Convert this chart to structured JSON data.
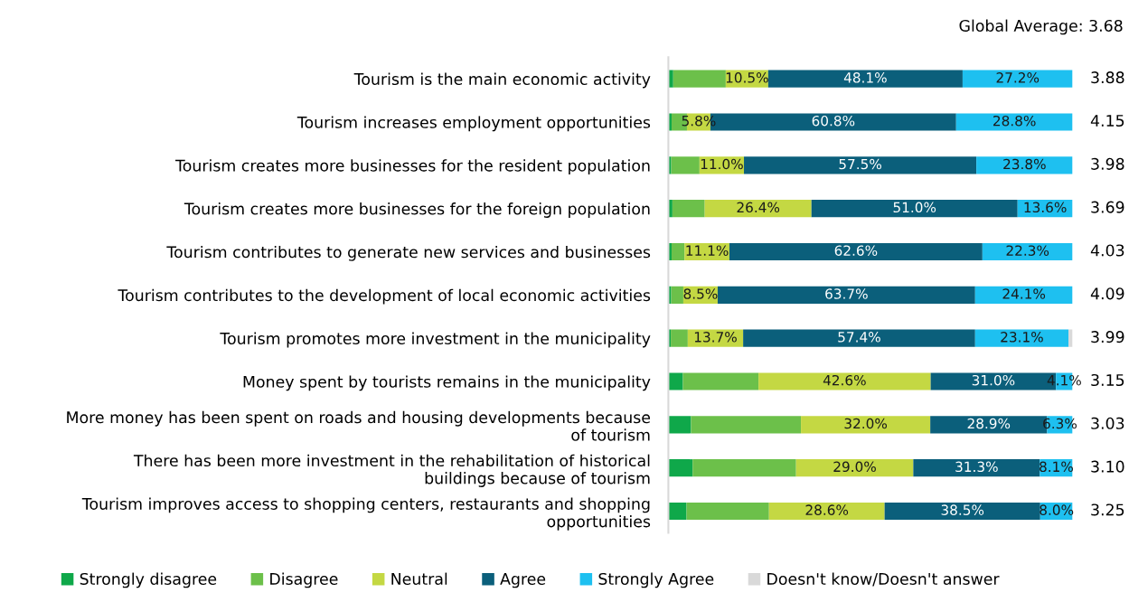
{
  "chart_data": {
    "type": "bar",
    "orientation": "horizontal",
    "stacked": true,
    "categories": [
      "Tourism is the main economic activity",
      "Tourism increases employment opportunities",
      "Tourism creates more businesses for the resident population",
      "Tourism creates more businesses for the foreign population",
      "Tourism contributes to generate new services and businesses",
      "Tourism contributes to the development of local economic activities",
      "Tourism promotes more investment in the municipality",
      "Money spent by tourists remains in the municipality",
      "More money has been spent on roads and housing developments because\nof tourism",
      "There has been more investment in the rehabilitation of historical\nbuildings because of tourism",
      "Tourism improves access to shopping centers, restaurants and shopping\nopportunities"
    ],
    "series": [
      {
        "name": "Strongly disagree",
        "color": "#0fa84a",
        "values": [
          1.2,
          0.8,
          0.7,
          1.0,
          0.8,
          0.7,
          0.6,
          3.6,
          5.6,
          6.0,
          4.5
        ]
      },
      {
        "name": "Disagree",
        "color": "#6cc04a",
        "values": [
          13.0,
          3.8,
          7.0,
          8.0,
          3.2,
          3.0,
          4.2,
          18.7,
          27.2,
          25.6,
          20.4
        ]
      },
      {
        "name": "Neutral",
        "color": "#c4d843",
        "values": [
          10.5,
          5.8,
          11.0,
          26.4,
          11.1,
          8.5,
          13.7,
          42.6,
          32.0,
          29.0,
          28.6
        ],
        "value_labels": [
          "10.5%",
          "5.8%",
          "11.0%",
          "26.4%",
          "11.1%",
          "8.5%",
          "13.7%",
          "42.6%",
          "32.0%",
          "29.0%",
          "28.6%"
        ]
      },
      {
        "name": "Agree",
        "color": "#0b5f7b",
        "values": [
          48.1,
          60.8,
          57.5,
          51.0,
          62.6,
          63.7,
          57.4,
          31.0,
          28.9,
          31.3,
          38.5
        ],
        "value_labels": [
          "48.1%",
          "60.8%",
          "57.5%",
          "51.0%",
          "62.6%",
          "63.7%",
          "57.4%",
          "31.0%",
          "28.9%",
          "31.3%",
          "38.5%"
        ]
      },
      {
        "name": "Strongly Agree",
        "color": "#1ec0f0",
        "values": [
          27.2,
          28.8,
          23.8,
          13.6,
          22.3,
          24.1,
          23.1,
          4.1,
          6.3,
          8.1,
          8.0
        ],
        "value_labels": [
          "27.2%",
          "28.8%",
          "23.8%",
          "13.6%",
          "22.3%",
          "24.1%",
          "23.1%",
          "4.1%",
          "6.3%",
          "8.1%",
          "8.0%"
        ]
      },
      {
        "name": "Doesn't know/Doesn't answer",
        "color": "#d9d9d9",
        "values": [
          null,
          null,
          null,
          null,
          null,
          null,
          1.0,
          null,
          null,
          null,
          null
        ]
      }
    ],
    "annotations": [
      "Global Average: 3.68",
      "3.88",
      "4.15",
      "3.98",
      "3.69",
      "4.03",
      "4.09",
      "3.99",
      "3.15",
      "3.03",
      "3.10",
      "3.25"
    ],
    "legend": "bottom",
    "grid": false,
    "tick_labels": "y"
  }
}
